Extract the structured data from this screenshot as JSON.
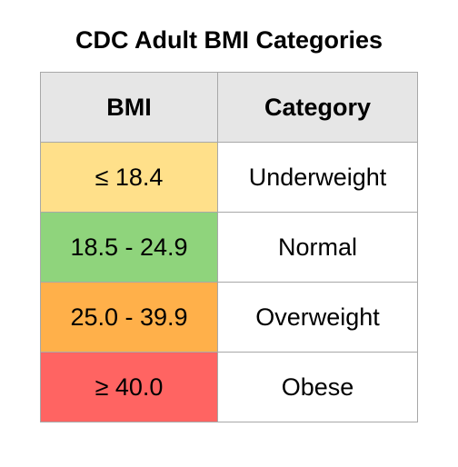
{
  "title": "CDC Adult BMI Categories",
  "table": {
    "headers": [
      "BMI",
      "Category"
    ],
    "rows": [
      {
        "bmi": "≤ 18.4",
        "category": "Underweight",
        "color": "#ffe08a"
      },
      {
        "bmi": "18.5 - 24.9",
        "category": "Normal",
        "color": "#8fd47c"
      },
      {
        "bmi": "25.0 - 39.9",
        "category": "Overweight",
        "color": "#ffb04a"
      },
      {
        "bmi": "≥ 40.0",
        "category": "Obese",
        "color": "#ff6462"
      }
    ]
  }
}
